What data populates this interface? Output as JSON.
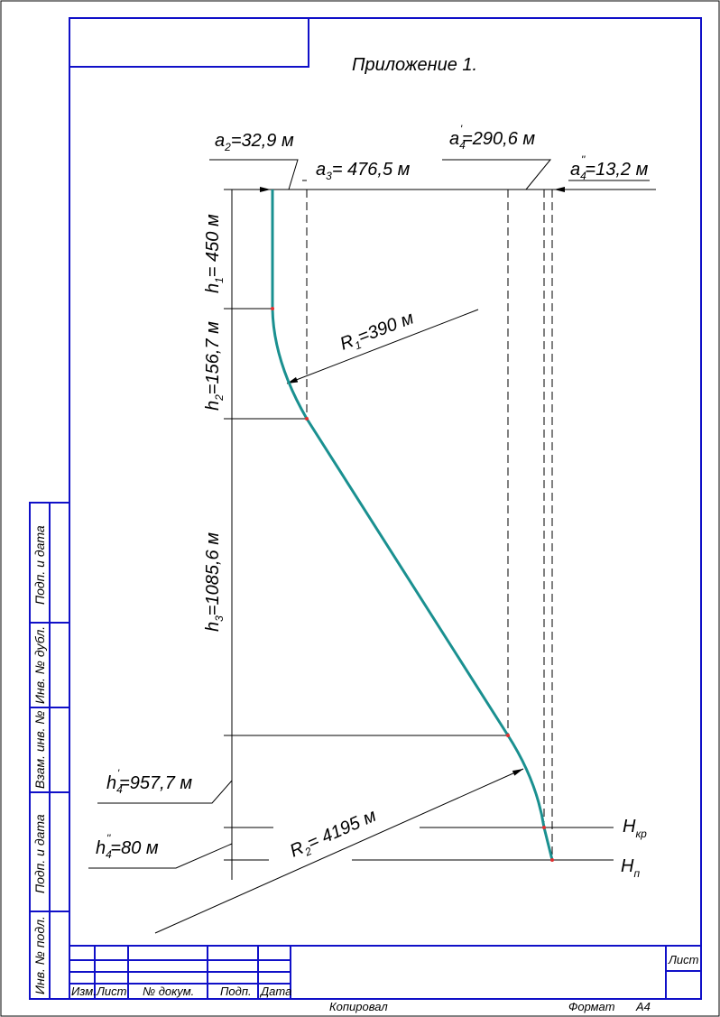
{
  "title": "Приложение 1.",
  "labels": {
    "a2": {
      "symbol": "a",
      "sub": "2",
      "text": "=32,9 м"
    },
    "a3": {
      "symbol": "a",
      "sub": "3",
      "text": "= 476,5 м"
    },
    "a4p": {
      "symbol": "a",
      "sub": "4",
      "sup": "'",
      "text": "=290,6 м"
    },
    "a4pp": {
      "symbol": "a",
      "sub": "4",
      "sup": "''",
      "text": "=13,2 м"
    },
    "h1": {
      "symbol": "h",
      "sub": "1",
      "text": "= 450 м"
    },
    "h2": {
      "symbol": "h",
      "sub": "2",
      "text": "=156,7 м"
    },
    "h3": {
      "symbol": "h",
      "sub": "3",
      "text": "=1085,6 м"
    },
    "R1": {
      "symbol": "R",
      "sub": "1",
      "text": "=390 м"
    },
    "R2": {
      "symbol": "R",
      "sub": "2",
      "text": "= 4195 м"
    },
    "h4p": {
      "symbol": "h",
      "sub": "4",
      "sup": "'",
      "text": "=957,7 м"
    },
    "h4pp": {
      "symbol": "h",
      "sub": "4",
      "sup": "''",
      "text": "=80 м"
    },
    "Hkr": {
      "symbol": "H",
      "sub": "кр"
    },
    "Hp": {
      "symbol": "H",
      "sub": "п"
    }
  },
  "side_stamp": [
    "Подп. и дата",
    "Инв. № дубл.",
    "Взам. инв. №",
    "Подп. и дата",
    "Инв. № подл."
  ],
  "title_block": {
    "columns": [
      "Изм.",
      "Лист",
      "№ докум.",
      "Подп.",
      "Дата"
    ],
    "sheet": "Лист"
  },
  "footer": {
    "copied": "Копировал",
    "format": "Формат",
    "format_value": "А4"
  }
}
